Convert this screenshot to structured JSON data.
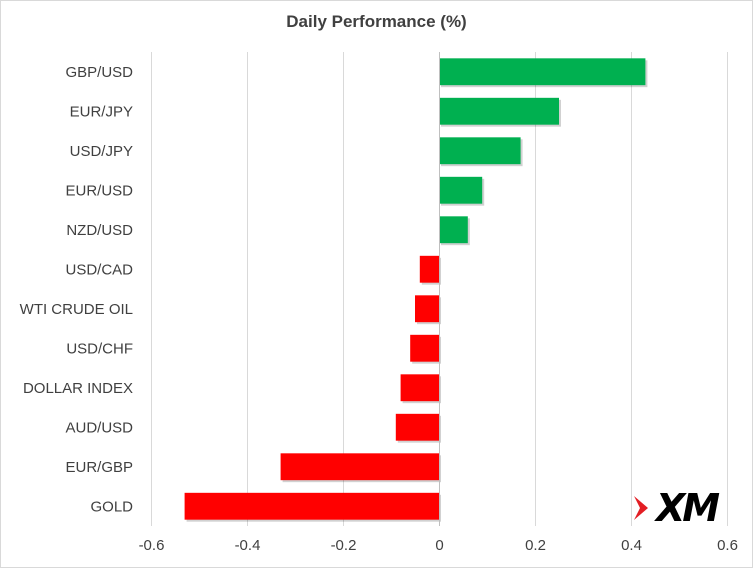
{
  "chart_data": {
    "type": "bar",
    "orientation": "horizontal",
    "title": "Daily Performance (%)",
    "xlabel": "",
    "ylabel": "",
    "xlim": [
      -0.6,
      0.6
    ],
    "xticks": [
      -0.6,
      -0.4,
      -0.2,
      0,
      0.2,
      0.4,
      0.6
    ],
    "xtick_labels": [
      "-0.6",
      "-0.4",
      "-0.2",
      "0",
      "0.2",
      "0.4",
      "0.6"
    ],
    "grid": "vertical",
    "categories": [
      "GBP/USD",
      "EUR/JPY",
      "USD/JPY",
      "EUR/USD",
      "NZD/USD",
      "USD/CAD",
      "WTI CRUDE OIL",
      "USD/CHF",
      "DOLLAR INDEX",
      "AUD/USD",
      "EUR/GBP",
      "GOLD"
    ],
    "values": [
      0.43,
      0.25,
      0.17,
      0.09,
      0.06,
      -0.04,
      -0.05,
      -0.06,
      -0.08,
      -0.09,
      -0.33,
      -0.53
    ],
    "colors": {
      "positive": "#00b050",
      "negative": "#ff0000",
      "grid": "#d9d9d9",
      "axis": "#bfbfbf"
    }
  },
  "logo": {
    "text": "XM",
    "accent": "#e31e24"
  }
}
